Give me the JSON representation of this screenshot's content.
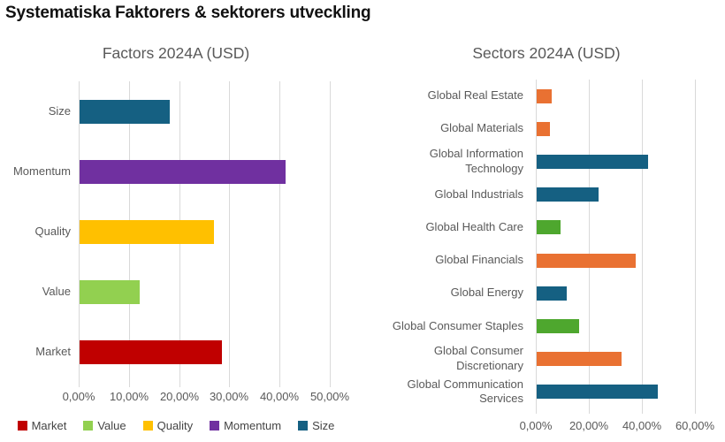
{
  "page_title": "Systematiska Faktorers & sektorers utveckling",
  "colors": {
    "blue": "#156082",
    "orange": "#E97132",
    "green": "#4EA72E",
    "red": "#C00000",
    "light_green": "#92D050",
    "yellow": "#FFC000",
    "purple": "#7030A0",
    "gridline": "#D9D9D9",
    "text_gray": "#595959"
  },
  "chart_data": [
    {
      "type": "bar",
      "orientation": "horizontal",
      "title": "Factors 2024A (USD)",
      "categories": [
        "Size",
        "Momentum",
        "Quality",
        "Value",
        "Market"
      ],
      "values": [
        17.9,
        41.0,
        26.8,
        12.0,
        28.3
      ],
      "unit": "%",
      "colors": [
        "#156082",
        "#7030A0",
        "#FFC000",
        "#92D050",
        "#C00000"
      ],
      "xlim": [
        0,
        50
      ],
      "x_ticks": [
        "0,00%",
        "10,00%",
        "20,00%",
        "30,00%",
        "40,00%",
        "50,00%"
      ],
      "grid": "vertical",
      "legend": {
        "position": "bottom",
        "items": [
          {
            "label": "Market",
            "color": "#C00000"
          },
          {
            "label": "Value",
            "color": "#92D050"
          },
          {
            "label": "Quality",
            "color": "#FFC000"
          },
          {
            "label": "Momentum",
            "color": "#7030A0"
          },
          {
            "label": "Size",
            "color": "#156082"
          }
        ]
      }
    },
    {
      "type": "bar",
      "orientation": "horizontal",
      "title": "Sectors 2024A (USD)",
      "categories": [
        "Global Real Estate",
        "Global Materials",
        "Global Information Technology",
        "Global Industrials",
        "Global Health Care",
        "Global Financials",
        "Global Energy",
        "Global Consumer Staples",
        "Global Consumer Discretionary",
        "Global Communication Services"
      ],
      "values": [
        5.7,
        5.0,
        42.1,
        23.3,
        9.0,
        37.2,
        11.4,
        16.1,
        32.1,
        45.6
      ],
      "unit": "%",
      "colors": [
        "#E97132",
        "#E97132",
        "#156082",
        "#156082",
        "#4EA72E",
        "#E97132",
        "#156082",
        "#4EA72E",
        "#E97132",
        "#156082"
      ],
      "xlim": [
        0,
        60
      ],
      "x_ticks": [
        "0,00%",
        "20,00%",
        "40,00%",
        "60,00%"
      ],
      "grid": "vertical",
      "legend": null
    }
  ]
}
